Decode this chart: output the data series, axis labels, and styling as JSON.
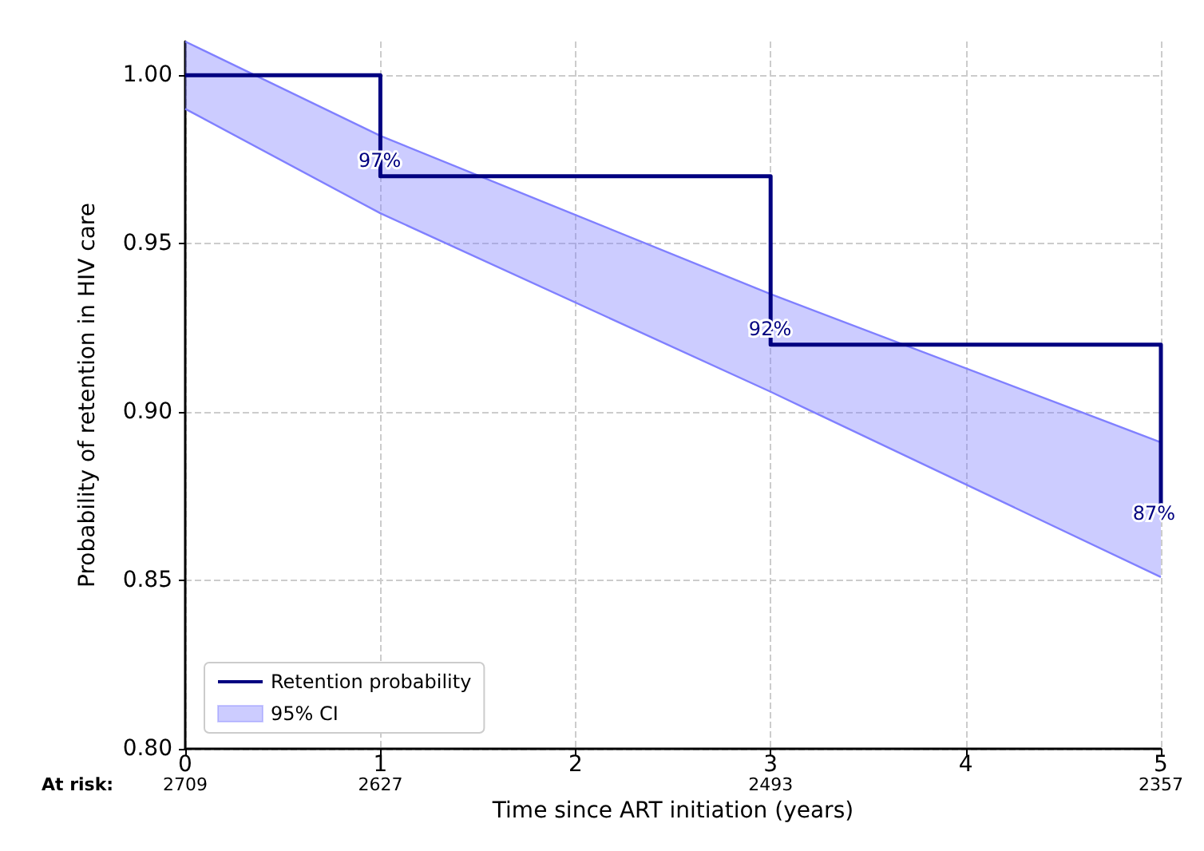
{
  "chart_data": {
    "type": "step",
    "xlabel": "Time since ART initiation (years)",
    "ylabel": "Probability of retention in HIV care",
    "series": [
      {
        "name": "Retention probability",
        "color": "#000080",
        "x": [
          0,
          1,
          3,
          5
        ],
        "values": [
          1,
          0.97,
          0.92,
          0.87
        ],
        "value_labels": [
          null,
          "97%",
          "92%",
          "87%"
        ]
      },
      {
        "name": "95% CI",
        "type": "area",
        "color": "#8080ff",
        "x": [
          0,
          1,
          3,
          5
        ],
        "values": [
          1.01,
          0.982,
          0.935,
          0.891
        ]
      },
      {
        "type": "line",
        "color": "#8080ff",
        "x": [
          0,
          1,
          3,
          5
        ],
        "values": [
          0.99,
          0.959,
          0.906,
          0.851
        ]
      }
    ],
    "xlim": [
      0,
      5
    ],
    "xticks": [
      0,
      1,
      2,
      3,
      4,
      5
    ],
    "ylim": [
      0.8,
      1.01
    ],
    "yticks": [
      {
        "value": 0.8,
        "label": "0.80"
      },
      {
        "value": 0.85,
        "label": "0.85"
      },
      {
        "value": 0.9,
        "label": "0.90"
      },
      {
        "value": 0.95,
        "label": "0.95"
      },
      {
        "value": 1,
        "label": "1.00"
      }
    ],
    "grid": true,
    "legend": "bottom left",
    "annotations": [
      "At risk:",
      "2709",
      "2627",
      "2493",
      "2357"
    ]
  }
}
